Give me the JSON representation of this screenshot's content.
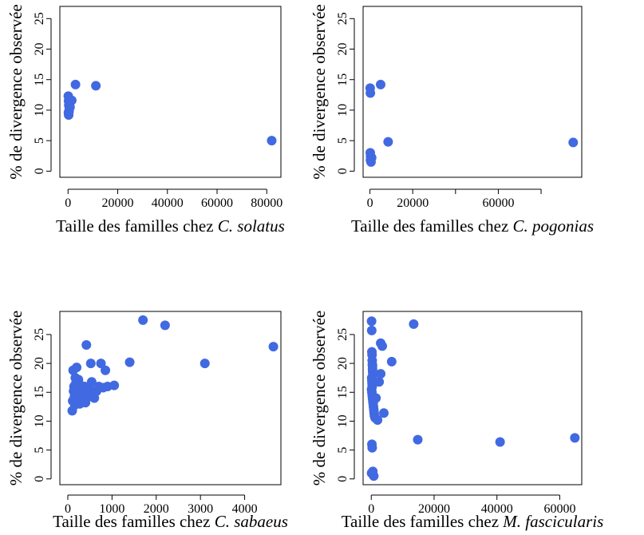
{
  "colors": {
    "points": "#4169E1"
  },
  "chart_data": [
    {
      "type": "scatter",
      "ylabel": "% de divergence observée",
      "xlabel_prefix": "Taille des familles chez ",
      "xlabel_species": "C. solatus",
      "xlim": [
        -3300,
        85700
      ],
      "ylim": [
        -1,
        27
      ],
      "xticks": [
        0,
        20000,
        40000,
        60000,
        80000
      ],
      "xtick_labels": [
        "0",
        "20000",
        "40000",
        "60000",
        "80000"
      ],
      "yticks": [
        0,
        5,
        10,
        15,
        20,
        25
      ],
      "ytick_labels": [
        "0",
        "5",
        "10",
        "15",
        "20",
        "25"
      ],
      "x": [
        100,
        200,
        300,
        500,
        150,
        250,
        400,
        800,
        1500,
        3000,
        11200,
        82000
      ],
      "y": [
        12.3,
        11.5,
        10.8,
        10.2,
        9.6,
        9.2,
        9.8,
        10.5,
        11.6,
        14.2,
        14.0,
        5.0
      ]
    },
    {
      "type": "scatter",
      "ylabel": "% de divergence observée",
      "xlabel_prefix": "Taille des familles chez ",
      "xlabel_species": "C. pogonias",
      "xlim": [
        -3200,
        99000
      ],
      "ylim": [
        -1,
        27
      ],
      "xticks": [
        0,
        20000,
        40000,
        60000,
        80000
      ],
      "xtick_labels": [
        "0",
        "20000",
        "",
        "60000",
        ""
      ],
      "yticks": [
        0,
        5,
        10,
        15,
        20,
        25
      ],
      "ytick_labels": [
        "0",
        "5",
        "10",
        "15",
        "20",
        "25"
      ],
      "x": [
        100,
        200,
        150,
        300,
        250,
        500,
        800,
        5000,
        8500,
        95000
      ],
      "y": [
        13.6,
        12.8,
        3.0,
        2.4,
        1.8,
        1.5,
        2.2,
        14.2,
        4.8,
        4.7
      ]
    },
    {
      "type": "scatter",
      "ylabel": "% de divergence observée",
      "xlabel_prefix": "Taille des familles chez ",
      "xlabel_species": "C. sabaeus",
      "xlim": [
        -180,
        4820
      ],
      "ylim": [
        -1,
        29
      ],
      "xticks": [
        0,
        1000,
        2000,
        3000,
        4000
      ],
      "xtick_labels": [
        "0",
        "1000",
        "2000",
        "3000",
        "4000"
      ],
      "yticks": [
        0,
        5,
        10,
        15,
        20,
        25
      ],
      "ytick_labels": [
        "0",
        "5",
        "10",
        "15",
        "20",
        "25"
      ],
      "x": [
        100,
        110,
        120,
        130,
        140,
        150,
        160,
        170,
        180,
        190,
        200,
        210,
        220,
        230,
        240,
        250,
        260,
        270,
        280,
        290,
        300,
        320,
        340,
        360,
        380,
        400,
        420,
        450,
        500,
        520,
        540,
        560,
        600,
        650,
        700,
        750,
        800,
        850,
        900,
        1050,
        1400,
        1700,
        2200,
        3100,
        4650
      ],
      "y": [
        11.8,
        13.5,
        18.8,
        15.2,
        16.0,
        14.2,
        12.8,
        17.5,
        16.5,
        15.0,
        19.3,
        14.8,
        13.2,
        16.8,
        17.2,
        15.8,
        14.0,
        13.0,
        15.5,
        16.2,
        14.5,
        13.8,
        15.0,
        14.2,
        16.0,
        13.2,
        23.2,
        14.8,
        15.5,
        20.0,
        16.8,
        14.2,
        14.0,
        15.2,
        16.0,
        20.0,
        15.8,
        18.8,
        16.0,
        16.2,
        20.2,
        27.5,
        26.6,
        20.0,
        22.9
      ]
    },
    {
      "type": "scatter",
      "ylabel": "% de divergence observée",
      "xlabel_prefix": "Taille des familles chez ",
      "xlabel_species": "M. fascicularis",
      "xlim": [
        -2600,
        67000
      ],
      "ylim": [
        -1,
        29
      ],
      "xticks": [
        0,
        20000,
        40000,
        60000
      ],
      "xtick_labels": [
        "0",
        "20000",
        "40000",
        "60000"
      ],
      "yticks": [
        0,
        5,
        10,
        15,
        20,
        25
      ],
      "ytick_labels": [
        "0",
        "5",
        "10",
        "15",
        "20",
        "25"
      ],
      "x": [
        100,
        150,
        200,
        250,
        300,
        350,
        400,
        450,
        500,
        150,
        200,
        250,
        300,
        100,
        200,
        300,
        400,
        500,
        600,
        700,
        800,
        900,
        1000,
        1200,
        1500,
        2000,
        2500,
        3000,
        3500,
        3000,
        4000,
        6500,
        13500,
        14800,
        41000,
        64800,
        200,
        300,
        500,
        800,
        100,
        400
      ],
      "y": [
        27.3,
        25.7,
        22.0,
        21.5,
        20.5,
        19.8,
        19.0,
        18.5,
        18.0,
        17.5,
        17.0,
        16.5,
        16.0,
        15.5,
        15.0,
        14.5,
        14.0,
        13.5,
        13.0,
        12.5,
        12.0,
        11.5,
        11.0,
        10.6,
        14.0,
        10.2,
        16.8,
        18.2,
        23.0,
        23.5,
        11.4,
        20.3,
        26.8,
        6.8,
        6.4,
        7.1,
        6.0,
        5.4,
        1.3,
        0.5,
        1.0,
        19.5
      ]
    }
  ]
}
